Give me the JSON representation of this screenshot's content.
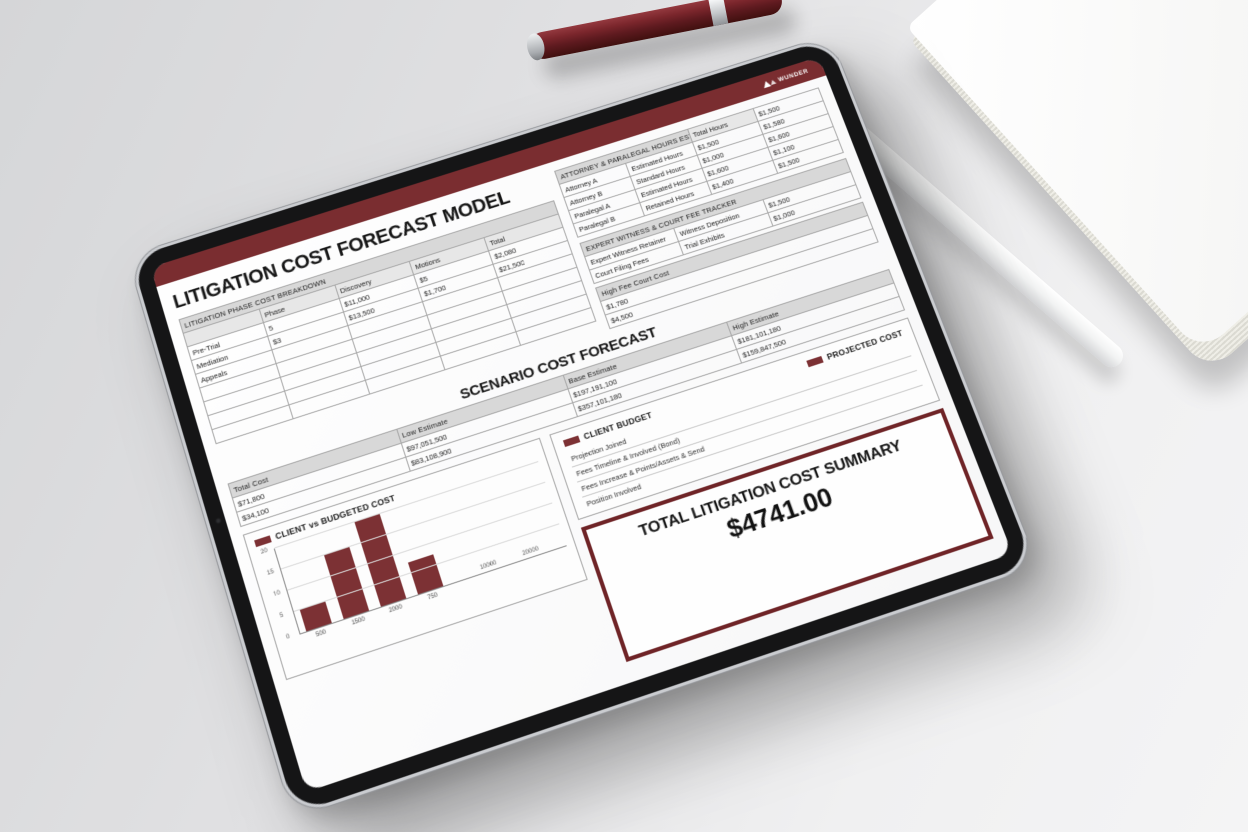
{
  "app": {
    "logo_text": "WUNDER"
  },
  "colors": {
    "brand": "#7a2d30",
    "bar": "#7c3134",
    "band": "#d8d8d8"
  },
  "sheet": {
    "title": "LITIGATION COST FORECAST MODEL",
    "phase_table": {
      "title": "LITIGATION PHASE COST BREAKDOWN",
      "headers": [
        "",
        "Phase",
        "Discovery",
        "Motions",
        "Total"
      ],
      "rows": [
        [
          "Pre-Trial",
          "5",
          "$11,000",
          "$5",
          "$2,080"
        ],
        [
          "Mediation",
          "$3",
          "$13,500",
          "$1,700",
          "$21,500"
        ],
        [
          "Appeals",
          "",
          "",
          "",
          ""
        ],
        [
          "",
          "",
          "",
          "",
          ""
        ],
        [
          "",
          "",
          "",
          "",
          ""
        ],
        [
          "",
          "",
          "",
          "",
          ""
        ],
        [
          "",
          "",
          "",
          "",
          ""
        ]
      ]
    },
    "attorney_table": {
      "title": "ATTORNEY & PARALEGAL HOURS ESTIMATE",
      "corner_header": "Total Hours",
      "corner_value": "$1,500",
      "rows": [
        [
          "Attorney A",
          "Estimated Hours",
          "$1,500",
          "$1,580"
        ],
        [
          "Attorney B",
          "Standard Hours",
          "$1,000",
          "$1,600"
        ],
        [
          "Paralegal A",
          "Estimated Hours",
          "$1,600",
          "$1,100"
        ],
        [
          "Paralegal B",
          "Retained Hours",
          "$1,400",
          "$1,500"
        ]
      ]
    },
    "expert_table": {
      "title": "EXPERT WITNESS & COURT FEE TRACKER",
      "rows": [
        [
          "Expert Witness Retainer",
          "Witness Deposition",
          "$1,500"
        ],
        [
          "Court Filing Fees",
          "Trial Exhibits",
          "$1,000"
        ]
      ],
      "high_fee": {
        "header": "High Fee Court Cost",
        "values": [
          "$1,780",
          "$4,500"
        ]
      }
    },
    "scenario": {
      "title": "SCENARIO COST FORECAST",
      "columns": [
        {
          "header": "Total Cost",
          "values": [
            "$71,800",
            "$34,100"
          ]
        },
        {
          "header": "Low Estimate",
          "values": [
            "$97,051,500",
            "$83,108,900"
          ]
        },
        {
          "header": "Base Estimate",
          "values": [
            "$197,191,100",
            "$357,101,180"
          ]
        },
        {
          "header": "High Estimate",
          "values": [
            "$181,101,180",
            "$159,847,500"
          ]
        }
      ]
    },
    "legend_box": {
      "entries": [
        "CLIENT BUDGET",
        "PROJECTED COST"
      ],
      "notes": [
        "Projection Joined",
        "Fees Timeline & Involved (Bond)",
        "Fees Increase & Points/Assets & Send",
        "Position Involved"
      ]
    },
    "summary": {
      "title": "TOTAL LITIGATION COST SUMMARY",
      "amount": "$4741.00"
    }
  },
  "chart_data": {
    "type": "bar",
    "title": "CLIENT vs BUDGETED COST",
    "categories": [
      "500",
      "1500",
      "2000",
      "750"
    ],
    "values": [
      500,
      1500,
      2000,
      750
    ],
    "ylim": [
      0,
      2000
    ],
    "ytick_labels": [
      "0",
      "5",
      "10",
      "15",
      "20"
    ],
    "extra_x_labels": [
      "10000",
      "20000"
    ],
    "bar_color": "#7c3134",
    "grid": true,
    "legend_position": "top-left",
    "xlabel": "",
    "ylabel": ""
  }
}
